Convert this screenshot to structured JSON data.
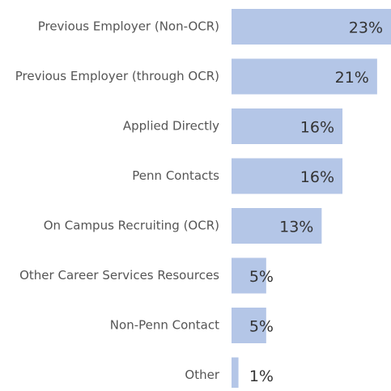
{
  "chart_data": {
    "type": "hbar",
    "categories": [
      "Previous Employer (Non-OCR)",
      "Previous Employer (through OCR)",
      "Applied Directly",
      "Penn Contacts",
      "On Campus Recruiting (OCR)",
      "Other Career Services Resources",
      "Non-Penn Contact",
      "Other"
    ],
    "values": [
      23,
      21,
      16,
      16,
      13,
      5,
      5,
      1
    ],
    "value_labels": [
      "23%",
      "21%",
      "16%",
      "16%",
      "13%",
      "5%",
      "5%",
      "1%"
    ],
    "color": "#b4c6e7",
    "xlim": [
      0,
      23
    ]
  }
}
